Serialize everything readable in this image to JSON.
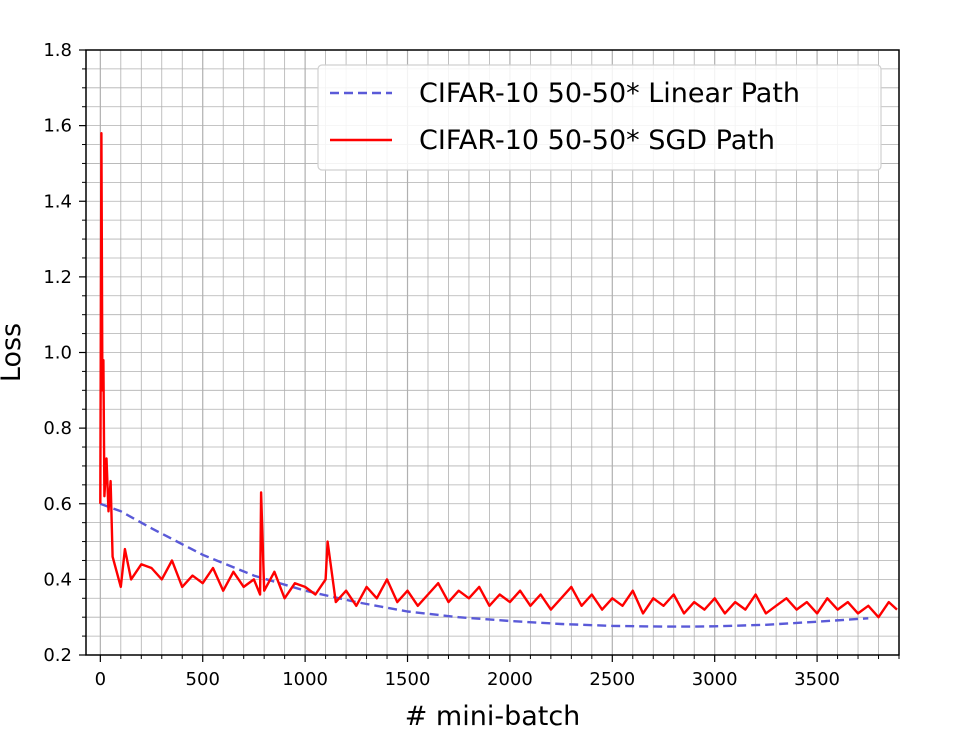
{
  "chart_data": {
    "type": "line",
    "title": "",
    "xlabel": "# mini-batch",
    "ylabel": "Loss",
    "xlim": [
      -70,
      3900
    ],
    "ylim": [
      0.2,
      1.8
    ],
    "x_ticks": [
      0,
      500,
      1000,
      1500,
      2000,
      2500,
      3000,
      3500
    ],
    "x_tick_labels": [
      "0",
      "500",
      "1000",
      "1500",
      "2000",
      "2500",
      "3000",
      "3500"
    ],
    "y_ticks": [
      0.2,
      0.4,
      0.6,
      0.8,
      1.0,
      1.2,
      1.4,
      1.6,
      1.8
    ],
    "y_tick_labels": [
      "0.2",
      "0.4",
      "0.6",
      "0.8",
      "1.0",
      "1.2",
      "1.4",
      "1.6",
      "1.8"
    ],
    "grid": "major and minor",
    "legend_position": "top-right",
    "series": [
      {
        "name": "CIFAR-10 50-50* Linear Path",
        "color": "#5a5ad8",
        "style": "dashed",
        "x": [
          0,
          100,
          250,
          500,
          750,
          1000,
          1250,
          1500,
          1750,
          2000,
          2250,
          2500,
          2750,
          2900,
          3000,
          3250,
          3500,
          3750
        ],
        "y": [
          0.6,
          0.58,
          0.535,
          0.465,
          0.41,
          0.37,
          0.34,
          0.315,
          0.3,
          0.29,
          0.282,
          0.277,
          0.275,
          0.275,
          0.276,
          0.28,
          0.288,
          0.297
        ]
      },
      {
        "name": "CIFAR-10 50-50* SGD Path",
        "color": "#ff0000",
        "style": "solid",
        "x": [
          0,
          5,
          10,
          15,
          20,
          30,
          40,
          50,
          60,
          80,
          100,
          120,
          150,
          200,
          250,
          300,
          350,
          400,
          450,
          500,
          550,
          600,
          650,
          700,
          750,
          780,
          785,
          800,
          850,
          900,
          950,
          1000,
          1050,
          1100,
          1110,
          1150,
          1200,
          1250,
          1300,
          1350,
          1400,
          1450,
          1500,
          1550,
          1600,
          1650,
          1700,
          1750,
          1800,
          1850,
          1900,
          1950,
          2000,
          2050,
          2100,
          2150,
          2200,
          2250,
          2300,
          2350,
          2400,
          2450,
          2500,
          2550,
          2600,
          2650,
          2700,
          2750,
          2800,
          2850,
          2900,
          2950,
          3000,
          3050,
          3100,
          3150,
          3200,
          3250,
          3300,
          3350,
          3400,
          3450,
          3500,
          3550,
          3600,
          3650,
          3700,
          3750,
          3800,
          3850,
          3890
        ],
        "y": [
          0.6,
          1.58,
          0.9,
          0.98,
          0.62,
          0.72,
          0.58,
          0.66,
          0.46,
          0.42,
          0.38,
          0.48,
          0.4,
          0.44,
          0.43,
          0.4,
          0.45,
          0.38,
          0.41,
          0.39,
          0.43,
          0.37,
          0.42,
          0.38,
          0.4,
          0.36,
          0.63,
          0.37,
          0.42,
          0.35,
          0.39,
          0.38,
          0.36,
          0.4,
          0.5,
          0.34,
          0.37,
          0.33,
          0.38,
          0.35,
          0.4,
          0.34,
          0.37,
          0.33,
          0.36,
          0.39,
          0.34,
          0.37,
          0.35,
          0.38,
          0.33,
          0.36,
          0.34,
          0.37,
          0.33,
          0.36,
          0.32,
          0.35,
          0.38,
          0.33,
          0.36,
          0.32,
          0.35,
          0.33,
          0.37,
          0.31,
          0.35,
          0.33,
          0.36,
          0.31,
          0.34,
          0.32,
          0.35,
          0.31,
          0.34,
          0.32,
          0.36,
          0.31,
          0.33,
          0.35,
          0.32,
          0.34,
          0.31,
          0.35,
          0.32,
          0.34,
          0.31,
          0.33,
          0.3,
          0.34,
          0.32
        ]
      }
    ]
  },
  "colors": {
    "grid": "#b0b0b0",
    "axis": "#000000",
    "legend_border": "#d0d0d0"
  }
}
